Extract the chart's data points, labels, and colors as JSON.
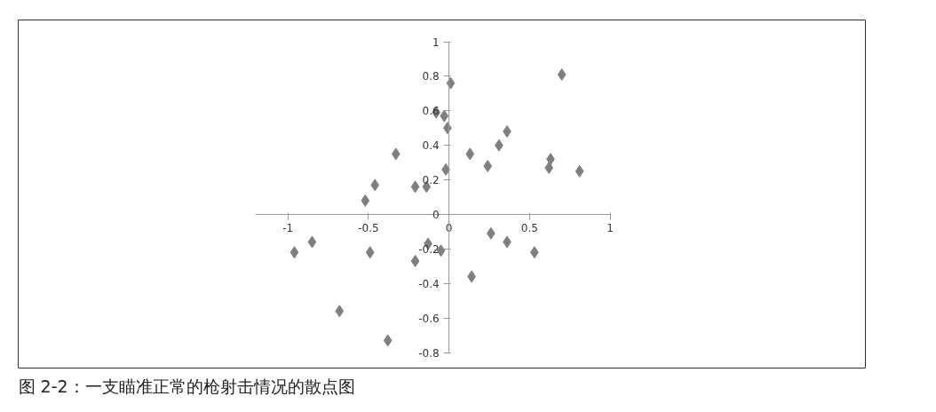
{
  "chart_data": {
    "type": "scatter",
    "x": [
      -0.96,
      -0.85,
      -0.68,
      -0.49,
      -0.52,
      -0.46,
      -0.33,
      -0.38,
      -0.21,
      -0.21,
      -0.14,
      -0.13,
      -0.05,
      -0.08,
      -0.03,
      -0.01,
      -0.02,
      0.01,
      0.13,
      0.14,
      0.24,
      0.26,
      0.31,
      0.36,
      0.36,
      0.53,
      0.62,
      0.63,
      0.7,
      0.81
    ],
    "series": [
      {
        "color": "#7f7f7f",
        "values": [
          -0.22,
          -0.16,
          -0.56,
          -0.22,
          0.08,
          0.17,
          0.35,
          -0.73,
          0.16,
          -0.27,
          0.16,
          -0.17,
          -0.21,
          0.59,
          0.57,
          0.5,
          0.26,
          0.76,
          0.35,
          -0.36,
          0.28,
          -0.11,
          0.4,
          0.48,
          -0.16,
          -0.22,
          0.27,
          0.32,
          0.81,
          0.25
        ]
      }
    ],
    "xlim": [
      -1.2,
      1
    ],
    "ylim": [
      -0.8,
      1
    ],
    "xticks": [
      -1,
      -0.5,
      0,
      0.5,
      1
    ],
    "yticks": [
      -0.8,
      -0.6,
      -0.4,
      -0.2,
      0,
      0.2,
      0.4,
      0.6,
      0.8,
      1
    ],
    "marker": "diamond",
    "grid": false,
    "annotations": [
      "图 2-2：一支瞄准正常的枪射击情况的散点图"
    ]
  }
}
